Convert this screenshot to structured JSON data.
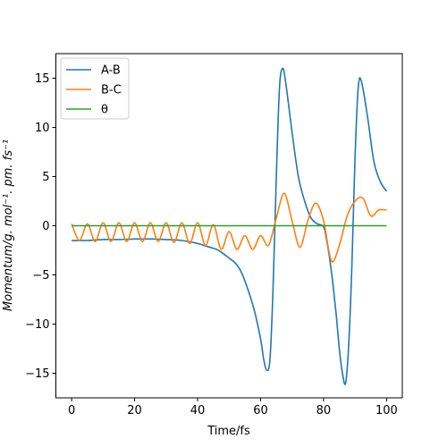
{
  "chart_data": {
    "type": "line",
    "xlabel": "Time/fs",
    "ylabel": "Momentum/g. mol⁻¹. pm. fs⁻¹",
    "xlim": [
      -5,
      105
    ],
    "ylim": [
      -17.5,
      17.5
    ],
    "x_ticks": [
      0,
      20,
      40,
      60,
      80,
      100
    ],
    "y_ticks": [
      -15,
      -10,
      -5,
      0,
      5,
      10,
      15
    ],
    "x_tick_labels": [
      "0",
      "20",
      "40",
      "60",
      "80",
      "100"
    ],
    "y_tick_labels": [
      "−15",
      "−10",
      "−5",
      "0",
      "5",
      "10",
      "15"
    ],
    "grid": false,
    "legend_position": "top-left",
    "series": [
      {
        "name": "A-B",
        "color": "#1f77b4",
        "x": [
          0,
          5,
          10,
          15,
          20,
          25,
          30,
          35,
          40,
          42,
          44,
          46,
          48,
          50,
          52,
          54,
          56,
          58,
          60,
          61,
          62,
          63,
          64,
          65,
          66,
          67,
          68,
          70,
          72,
          74,
          76,
          78,
          80,
          81,
          82,
          83,
          84,
          85,
          86,
          87,
          88,
          89,
          90,
          91,
          92,
          94,
          96,
          98,
          100
        ],
        "y": [
          -1.5,
          -1.5,
          -1.4,
          -1.4,
          -1.35,
          -1.35,
          -1.4,
          -1.5,
          -1.8,
          -2.0,
          -2.2,
          -2.4,
          -2.8,
          -3.3,
          -3.8,
          -4.8,
          -6.5,
          -8.6,
          -11.5,
          -13.6,
          -14.7,
          -13.5,
          -6.0,
          5.0,
          14.0,
          16.0,
          14.5,
          9.5,
          5.0,
          2.5,
          0.8,
          0.2,
          -0.1,
          -1.5,
          -3.5,
          -6.0,
          -9.0,
          -12.5,
          -15.0,
          -16.0,
          -12.0,
          -4.0,
          7.0,
          14.0,
          14.7,
          11.0,
          6.5,
          4.5,
          3.5
        ]
      },
      {
        "name": "B-C",
        "color": "#ff7f0e",
        "x": [
          0,
          2.5,
          5,
          7.5,
          10,
          12.5,
          15,
          17.5,
          20,
          22.5,
          25,
          27.5,
          30,
          32.5,
          35,
          37.5,
          40,
          42.5,
          45,
          47.5,
          50,
          52.5,
          55,
          57.5,
          60,
          62.5,
          65,
          67.5,
          70,
          72.5,
          75,
          77.5,
          80,
          82.5,
          85,
          87.5,
          90,
          92.5,
          95,
          97.5,
          100
        ],
        "y": [
          0.2,
          -1.5,
          0.2,
          -1.6,
          0.3,
          -1.6,
          0.3,
          -1.6,
          0.3,
          -1.6,
          0.3,
          -1.6,
          0.3,
          -1.7,
          0.3,
          -1.8,
          0.3,
          -2.0,
          0.1,
          -2.4,
          -0.6,
          -2.4,
          -1.0,
          -2.4,
          -1.0,
          -2.0,
          0.8,
          3.3,
          0.5,
          -2.2,
          0.5,
          2.3,
          0.5,
          -3.6,
          -2.0,
          1.0,
          2.5,
          2.8,
          1.0,
          1.6,
          1.6
        ]
      },
      {
        "name": "θ",
        "color": "#2ca02c",
        "x": [
          0,
          100
        ],
        "y": [
          0,
          0
        ]
      }
    ]
  }
}
